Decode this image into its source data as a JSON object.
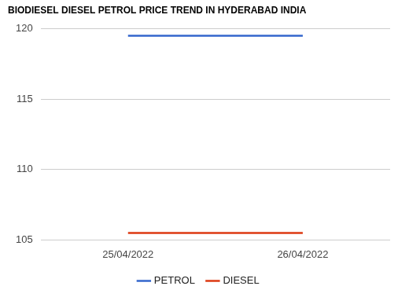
{
  "chart_data": {
    "type": "line",
    "title": "BIODIESEL DIESEL PETROL PRICE TREND IN HYDERABAD INDIA",
    "categories": [
      "25/04/2022",
      "26/04/2022"
    ],
    "series": [
      {
        "name": "PETROL",
        "color": "#3366cc",
        "values": [
          119.49,
          119.49
        ]
      },
      {
        "name": "DIESEL",
        "color": "#dc3912",
        "values": [
          105.49,
          105.49
        ]
      }
    ],
    "ylim": [
      105,
      120
    ],
    "yticks": [
      105,
      110,
      115,
      120
    ],
    "grid": true,
    "legend": "bottom",
    "marker": "none",
    "line_style": "solid"
  }
}
